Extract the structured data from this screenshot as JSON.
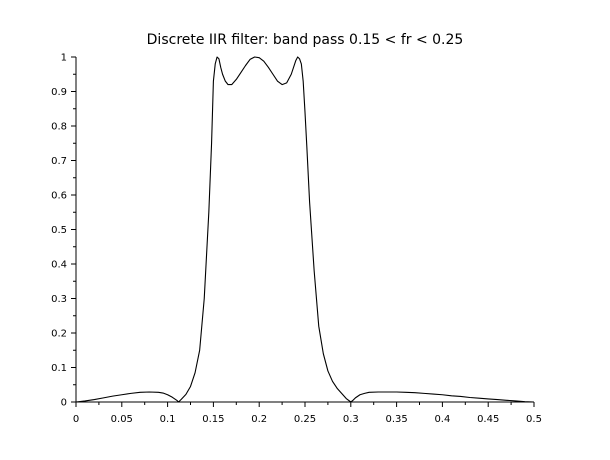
{
  "chart_data": {
    "type": "line",
    "title": "Discrete IIR filter: band pass  0.15 < fr < 0.25",
    "xlabel": "",
    "ylabel": "",
    "xlim": [
      0,
      0.5
    ],
    "ylim": [
      0,
      1
    ],
    "grid": false,
    "x_ticks": [
      0,
      0.05,
      0.1,
      0.15,
      0.2,
      0.25,
      0.3,
      0.35,
      0.4,
      0.45,
      0.5
    ],
    "x_tick_labels": [
      "0",
      "0.05",
      "0.1",
      "0.15",
      "0.2",
      "0.25",
      "0.3",
      "0.35",
      "0.4",
      "0.45",
      "0.5"
    ],
    "y_ticks": [
      0,
      0.1,
      0.2,
      0.3,
      0.4,
      0.5,
      0.6,
      0.7,
      0.8,
      0.9,
      1
    ],
    "y_tick_labels": [
      "0",
      "0.1",
      "0.2",
      "0.3",
      "0.4",
      "0.5",
      "0.6",
      "0.7",
      "0.8",
      "0.9",
      "1"
    ],
    "series": [
      {
        "color": "#000000",
        "x": [
          0,
          0.01,
          0.02,
          0.03,
          0.04,
          0.05,
          0.06,
          0.07,
          0.08,
          0.09,
          0.095,
          0.1,
          0.105,
          0.11,
          0.112,
          0.115,
          0.12,
          0.125,
          0.13,
          0.135,
          0.14,
          0.145,
          0.148,
          0.15,
          0.152,
          0.154,
          0.156,
          0.158,
          0.16,
          0.163,
          0.166,
          0.17,
          0.175,
          0.18,
          0.185,
          0.19,
          0.195,
          0.2,
          0.205,
          0.21,
          0.215,
          0.22,
          0.225,
          0.23,
          0.235,
          0.24,
          0.242,
          0.244,
          0.246,
          0.248,
          0.25,
          0.252,
          0.255,
          0.26,
          0.265,
          0.27,
          0.275,
          0.28,
          0.285,
          0.29,
          0.295,
          0.3,
          0.302,
          0.305,
          0.31,
          0.315,
          0.32,
          0.33,
          0.34,
          0.35,
          0.36,
          0.37,
          0.38,
          0.39,
          0.4,
          0.41,
          0.42,
          0.43,
          0.44,
          0.45,
          0.46,
          0.47,
          0.48,
          0.49,
          0.5
        ],
        "y": [
          0,
          0.003,
          0.007,
          0.012,
          0.017,
          0.021,
          0.025,
          0.028,
          0.029,
          0.028,
          0.026,
          0.021,
          0.014,
          0.005,
          0,
          0.008,
          0.022,
          0.045,
          0.085,
          0.15,
          0.3,
          0.55,
          0.75,
          0.93,
          0.98,
          1.0,
          0.995,
          0.97,
          0.95,
          0.93,
          0.92,
          0.92,
          0.935,
          0.955,
          0.975,
          0.993,
          1.0,
          0.998,
          0.988,
          0.97,
          0.95,
          0.93,
          0.92,
          0.925,
          0.95,
          0.99,
          1.0,
          0.995,
          0.98,
          0.93,
          0.84,
          0.74,
          0.58,
          0.38,
          0.22,
          0.14,
          0.09,
          0.06,
          0.04,
          0.025,
          0.01,
          0,
          0.004,
          0.012,
          0.021,
          0.025,
          0.028,
          0.029,
          0.029,
          0.029,
          0.028,
          0.027,
          0.025,
          0.023,
          0.021,
          0.018,
          0.016,
          0.013,
          0.011,
          0.009,
          0.007,
          0.005,
          0.003,
          0.001,
          0
        ]
      }
    ]
  }
}
